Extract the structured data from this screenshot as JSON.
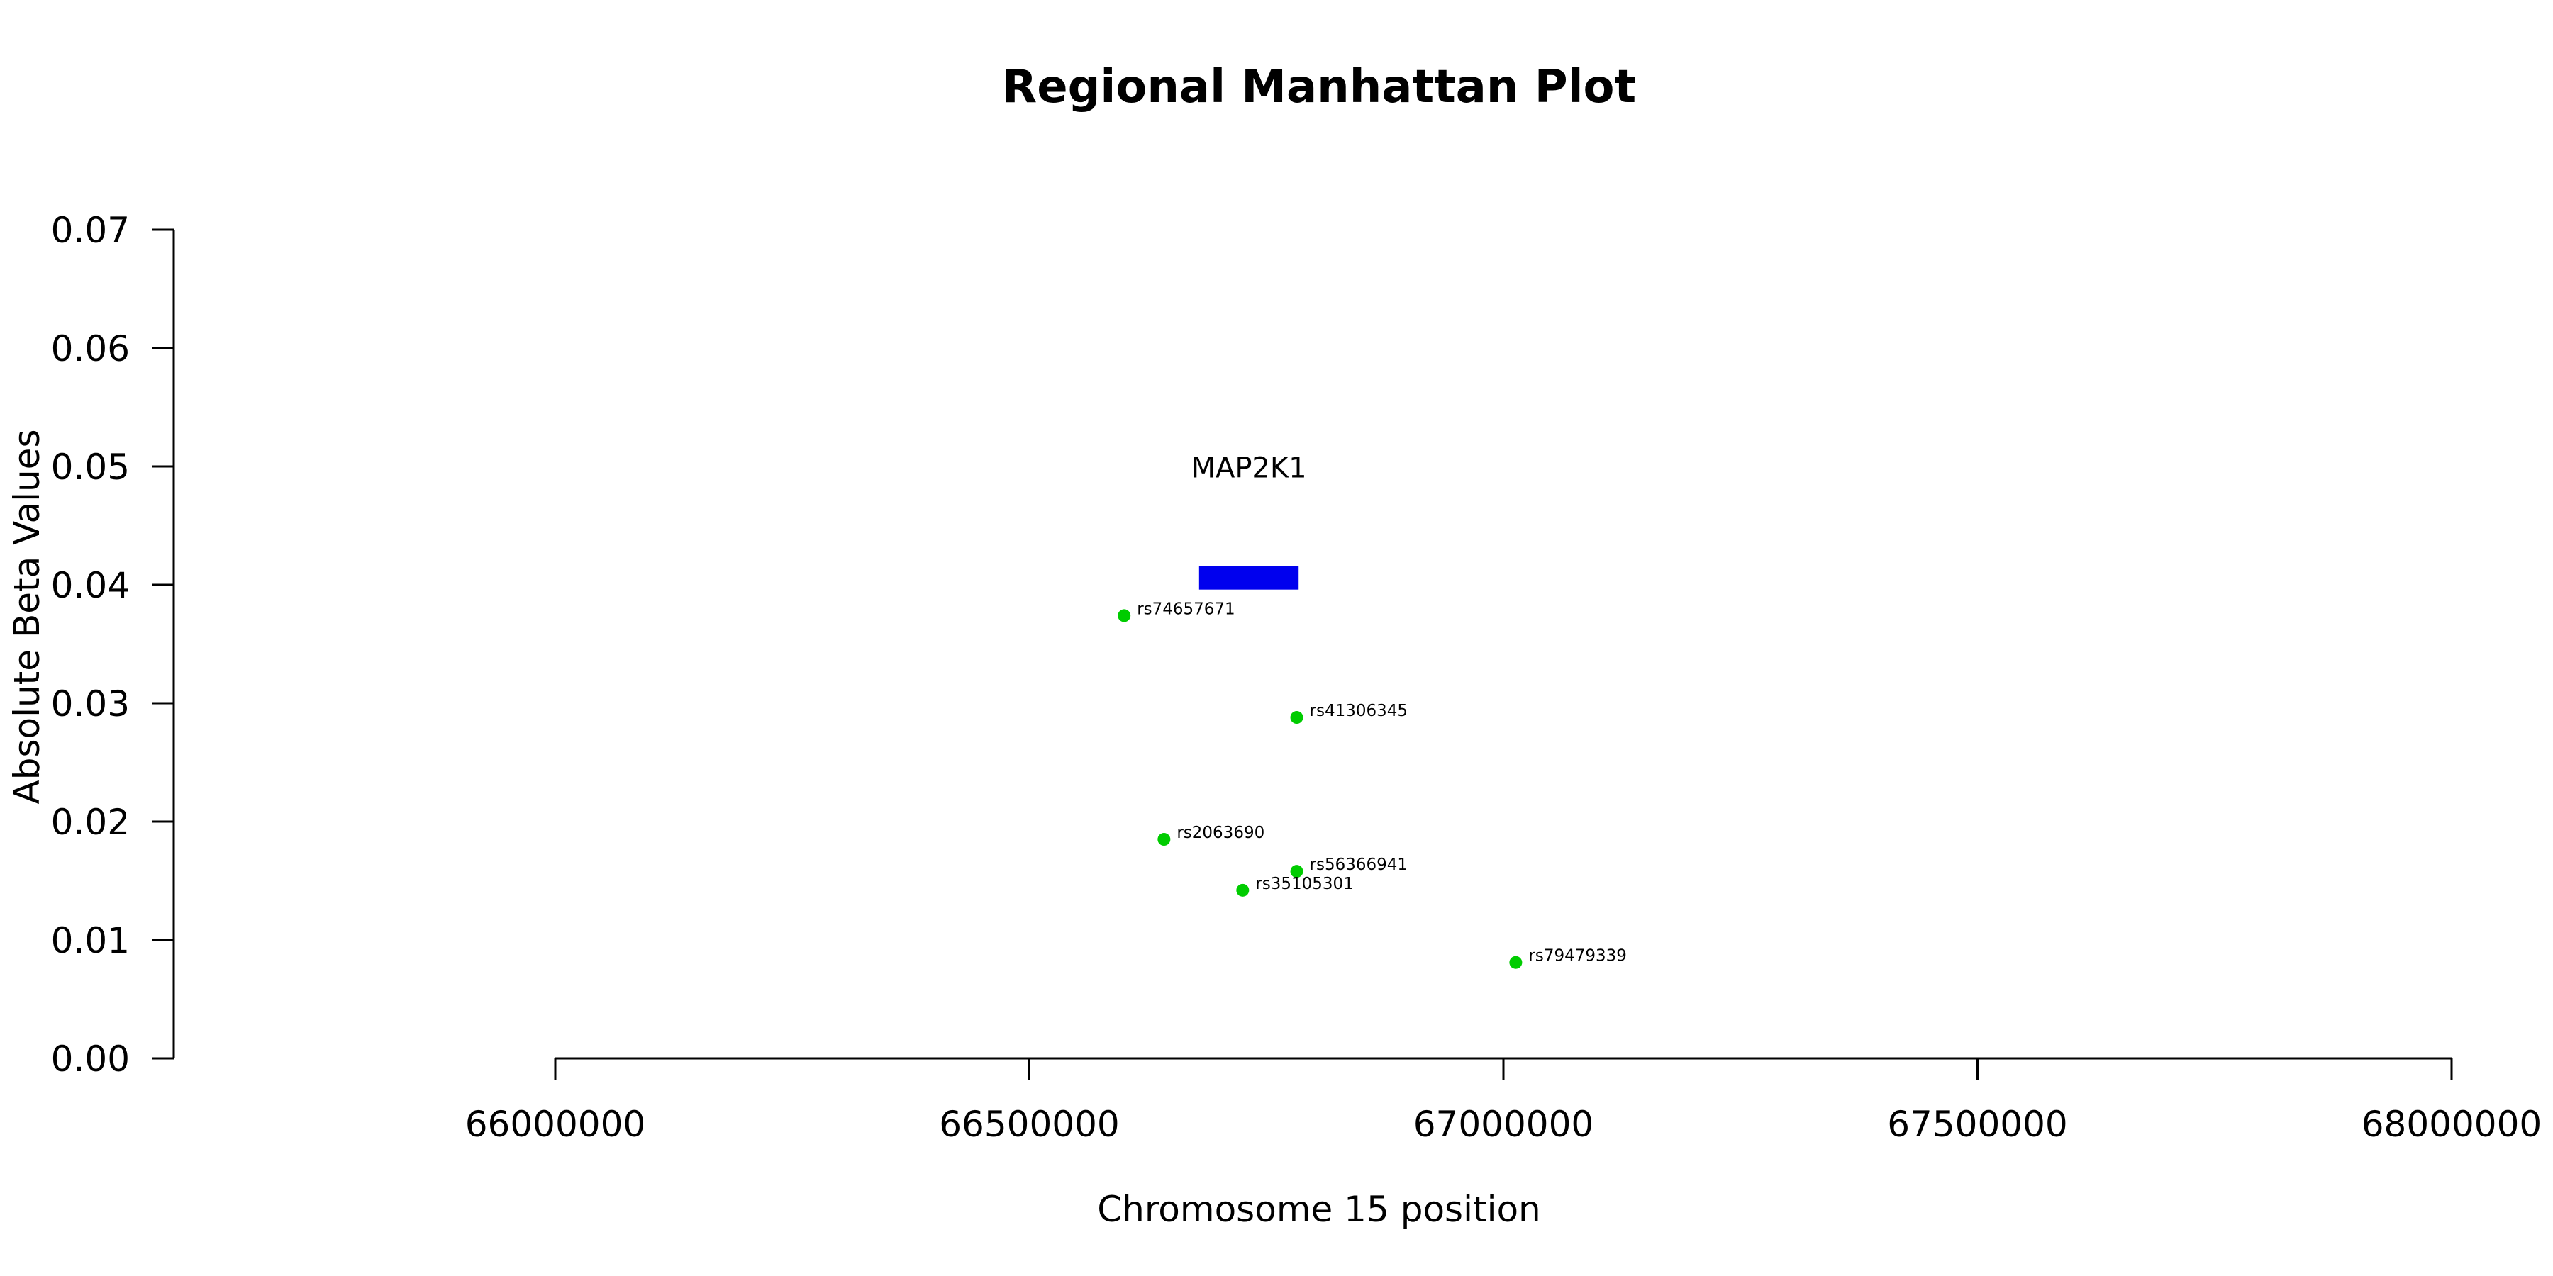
{
  "chart_data": {
    "type": "scatter",
    "title": "Regional Manhattan Plot",
    "xlabel": "Chromosome 15 position",
    "ylabel": "Absolute Beta Values",
    "xlim": [
      66000000,
      68000000
    ],
    "ylim": [
      0,
      0.07
    ],
    "x_ticks": [
      66000000,
      66500000,
      67000000,
      67500000,
      68000000
    ],
    "y_ticks": [
      0.0,
      0.01,
      0.02,
      0.03,
      0.04,
      0.05,
      0.06,
      0.07
    ],
    "x_tick_labels": [
      "66000000",
      "66500000",
      "67000000",
      "67500000",
      "68000000"
    ],
    "y_tick_labels": [
      "0.00",
      "0.01",
      "0.02",
      "0.03",
      "0.04",
      "0.05",
      "0.06",
      "0.07"
    ],
    "grid": false,
    "legend": "none",
    "point_color": "#00cc00",
    "points": [
      {
        "label": "rs74657671",
        "x": 66600000,
        "y": 0.0374
      },
      {
        "label": "rs41306345",
        "x": 66782000,
        "y": 0.0288
      },
      {
        "label": "rs2063690",
        "x": 66642000,
        "y": 0.0185
      },
      {
        "label": "rs56366941",
        "x": 66782000,
        "y": 0.0158
      },
      {
        "label": "rs35105301",
        "x": 66725000,
        "y": 0.0142
      },
      {
        "label": "rs79479339",
        "x": 67013000,
        "y": 0.0081
      }
    ],
    "gene": {
      "name": "MAP2K1",
      "start": 66679000,
      "end": 66784000,
      "y_bottom": 0.0396,
      "y_top": 0.0416,
      "color": "#0000ee"
    }
  }
}
